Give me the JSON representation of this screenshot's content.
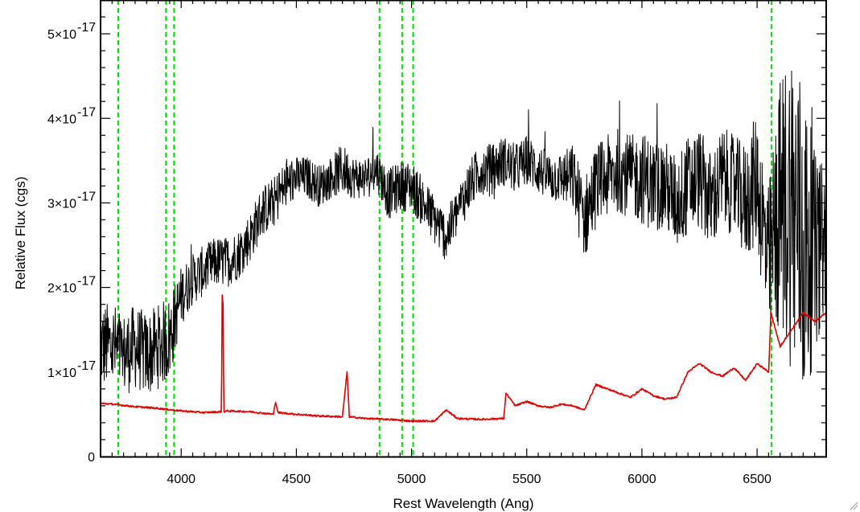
{
  "chart_data": {
    "type": "line",
    "title": "",
    "xlabel": "Rest Wavelength (Ang)",
    "ylabel": "Relative Flux (cgs)",
    "xlim": [
      3650,
      6800
    ],
    "ylim": [
      0,
      5.4e-17
    ],
    "x_ticks": [
      {
        "value": 4000,
        "label": "4000"
      },
      {
        "value": 4500,
        "label": "4500"
      },
      {
        "value": 5000,
        "label": "5000"
      },
      {
        "value": 5500,
        "label": "5500"
      },
      {
        "value": 6000,
        "label": "6000"
      },
      {
        "value": 6500,
        "label": "6500"
      }
    ],
    "y_ticks": [
      {
        "value": 0,
        "label": "0",
        "mantissa": "0",
        "exponent": ""
      },
      {
        "value": 1e-17,
        "label": "1×10⁻¹⁷",
        "mantissa": "1×10",
        "exponent": "-17"
      },
      {
        "value": 2e-17,
        "label": "2×10⁻¹⁷",
        "mantissa": "2×10",
        "exponent": "-17"
      },
      {
        "value": 3e-17,
        "label": "3×10⁻¹⁷",
        "mantissa": "3×10",
        "exponent": "-17"
      },
      {
        "value": 4e-17,
        "label": "4×10⁻¹⁷",
        "mantissa": "4×10",
        "exponent": "-17"
      },
      {
        "value": 5e-17,
        "label": "5×10⁻¹⁷",
        "mantissa": "5×10",
        "exponent": "-17"
      }
    ],
    "vertical_lines": [
      3727,
      3934,
      3969,
      4861,
      4959,
      5007,
      6563
    ],
    "colors": {
      "spectrum": "#000000",
      "error": "#e00000",
      "markers": "#00dd00",
      "axes": "#000000"
    },
    "series": [
      {
        "color": "black",
        "style": "noisy-line",
        "x": [
          3650,
          3700,
          3750,
          3800,
          3850,
          3900,
          3950,
          4000,
          4050,
          4100,
          4150,
          4200,
          4250,
          4300,
          4350,
          4400,
          4450,
          4500,
          4550,
          4600,
          4650,
          4700,
          4750,
          4800,
          4850,
          4900,
          4950,
          5000,
          5050,
          5100,
          5150,
          5200,
          5250,
          5300,
          5350,
          5400,
          5450,
          5500,
          5550,
          5600,
          5650,
          5700,
          5750,
          5800,
          5850,
          5900,
          5950,
          6000,
          6050,
          6100,
          6150,
          6200,
          6250,
          6300,
          6350,
          6400,
          6450,
          6500,
          6550,
          6600,
          6650,
          6700,
          6750,
          6800
        ],
        "y": [
          1.3e-17,
          1.3e-17,
          1.2e-17,
          1.3e-17,
          1.2e-17,
          1.3e-17,
          1.4e-17,
          1.9e-17,
          2.1e-17,
          2.2e-17,
          2.3e-17,
          2.3e-17,
          2.4e-17,
          2.6e-17,
          2.9e-17,
          3e-17,
          3.2e-17,
          3.3e-17,
          3.3e-17,
          3.2e-17,
          3.3e-17,
          3.4e-17,
          3.3e-17,
          3.3e-17,
          3.4e-17,
          3.1e-17,
          3.2e-17,
          3.2e-17,
          3e-17,
          2.8e-17,
          2.6e-17,
          2.9e-17,
          3.2e-17,
          3.4e-17,
          3.4e-17,
          3.5e-17,
          3.4e-17,
          3.5e-17,
          3.4e-17,
          3.3e-17,
          3.3e-17,
          3.3e-17,
          2.8e-17,
          3.2e-17,
          3.3e-17,
          3.4e-17,
          3.3e-17,
          3.3e-17,
          3.2e-17,
          3.2e-17,
          3e-17,
          3.2e-17,
          3.3e-17,
          3e-17,
          3.3e-17,
          3.2e-17,
          3e-17,
          3.3e-17,
          2.2e-17,
          3e-17,
          3e-17,
          2.5e-17,
          2.4e-17,
          2.6e-17
        ],
        "noise": [
          5e-18,
          5.5e-18,
          5e-18,
          5e-18,
          5e-18,
          5e-18,
          5e-18,
          3.5e-18,
          3e-18,
          3e-18,
          3e-18,
          3e-18,
          3e-18,
          3e-18,
          3e-18,
          3e-18,
          3e-18,
          2.5e-18,
          2.5e-18,
          2.5e-18,
          2.5e-18,
          3e-18,
          2.5e-18,
          2.5e-18,
          2.5e-18,
          3e-18,
          3e-18,
          3e-18,
          3e-18,
          3e-18,
          3e-18,
          3e-18,
          3e-18,
          3e-18,
          3e-18,
          3e-18,
          3e-18,
          3e-18,
          3e-18,
          3e-18,
          3e-18,
          4e-18,
          5e-18,
          5e-18,
          5e-18,
          5e-18,
          5e-18,
          5.5e-18,
          5.5e-18,
          5.5e-18,
          5.5e-18,
          6e-18,
          6e-18,
          6e-18,
          6e-18,
          6e-18,
          7e-18,
          8e-18,
          1e-17,
          1.5e-17,
          2e-17,
          2e-17,
          1.2e-17,
          8e-18
        ]
      },
      {
        "color": "red",
        "style": "line",
        "x": [
          3650,
          3700,
          3800,
          3900,
          4000,
          4100,
          4175,
          4178,
          4182,
          4185,
          4200,
          4300,
          4400,
          4410,
          4420,
          4500,
          4600,
          4700,
          4720,
          4730,
          4800,
          4900,
          5000,
          5100,
          5150,
          5200,
          5300,
          5400,
          5410,
          5450,
          5500,
          5550,
          5600,
          5650,
          5700,
          5750,
          5800,
          5850,
          5900,
          5950,
          6000,
          6050,
          6100,
          6150,
          6200,
          6250,
          6300,
          6350,
          6400,
          6450,
          6500,
          6550,
          6560,
          6600,
          6650,
          6700,
          6750,
          6800
        ],
        "y": [
          6.3e-18,
          6.2e-18,
          5.9e-18,
          5.7e-18,
          5.4e-18,
          5.2e-18,
          5.3e-18,
          1.9e-17,
          1.8e-17,
          5.3e-18,
          5.4e-18,
          5.3e-18,
          5e-18,
          6.5e-18,
          5.2e-18,
          5e-18,
          4.8e-18,
          4.7e-18,
          1e-17,
          4.7e-18,
          4.5e-18,
          4.4e-18,
          4.2e-18,
          4.2e-18,
          5.5e-18,
          4.5e-18,
          4.4e-18,
          4.5e-18,
          7.5e-18,
          6e-18,
          6.5e-18,
          6e-18,
          5.8e-18,
          6.2e-18,
          6e-18,
          5.5e-18,
          8.5e-18,
          8e-18,
          7.5e-18,
          7e-18,
          8e-18,
          7.2e-18,
          6.8e-18,
          7e-18,
          1e-17,
          1.1e-17,
          1e-17,
          9.5e-18,
          1.05e-17,
          9e-18,
          1.1e-17,
          1e-17,
          1.7e-17,
          1.3e-17,
          1.5e-17,
          1.7e-17,
          1.6e-17,
          1.7e-17
        ]
      }
    ]
  }
}
